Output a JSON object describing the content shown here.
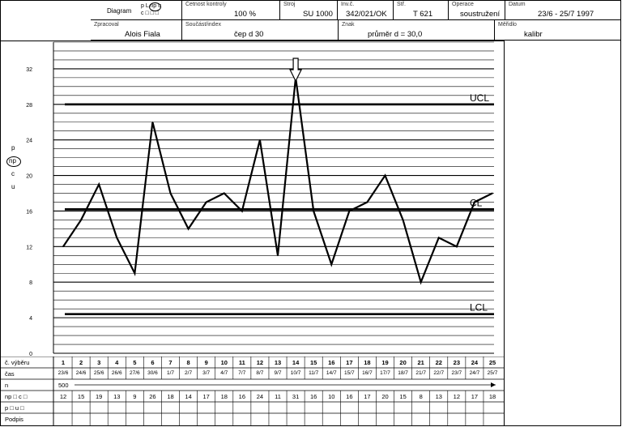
{
  "header": {
    "diagram_label": "Diagram",
    "diagram_options_top": "p L np u",
    "diagram_options_bottom": "c □ □ □",
    "freq_label": "Četnost kontroly",
    "freq_value": "100 %",
    "machine_label": "Stroj",
    "machine_value": "SU 1000",
    "inv_label": "Inv.č.",
    "inv_value": "342/021/OK",
    "str_label": "Stř.",
    "str_value": "T 621",
    "operation_label": "Operace",
    "operation_value": "soustružení",
    "date_label": "Datum",
    "date_value": "23/6 - 25/7 1997",
    "author_label": "Zpracoval",
    "author_value": "Alois Fiala",
    "part_label": "Součást/index",
    "part_value": "čep d 30",
    "sign_label": "Znak",
    "sign_value": "průměr d = 30,0",
    "method_label": "Měřidlo",
    "method_value": "kalibr"
  },
  "side_labels": {
    "p": "p",
    "np": "np",
    "c": "c",
    "u": "u"
  },
  "table": {
    "row_sample_label": "č. výběru",
    "row_time_label": "čas",
    "row_n_label": "n",
    "row_value_label": "np □ c □",
    "row_pu_label": "p □ u □",
    "row_sign_label": "Podpis",
    "n_value": "500",
    "sample_numbers": [
      "1",
      "2",
      "3",
      "4",
      "5",
      "6",
      "7",
      "8",
      "9",
      "10",
      "11",
      "12",
      "13",
      "14",
      "15",
      "16",
      "17",
      "18",
      "19",
      "20",
      "21",
      "22",
      "23",
      "24",
      "25"
    ],
    "times": [
      "23/6",
      "24/6",
      "25/6",
      "26/6",
      "27/6",
      "30/6",
      "1/7",
      "2/7",
      "3/7",
      "4/7",
      "7/7",
      "8/7",
      "9/7",
      "10/7",
      "11/7",
      "14/7",
      "15/7",
      "16/7",
      "17/7",
      "18/7",
      "21/7",
      "22/7",
      "23/7",
      "24/7",
      "25/7"
    ],
    "values": [
      "12",
      "15",
      "19",
      "13",
      "9",
      "26",
      "18",
      "14",
      "17",
      "18",
      "16",
      "24",
      "11",
      "31",
      "16",
      "10",
      "16",
      "17",
      "20",
      "15",
      "8",
      "13",
      "12",
      "17",
      "18"
    ]
  },
  "chart_data": {
    "type": "line",
    "x": [
      1,
      2,
      3,
      4,
      5,
      6,
      7,
      8,
      9,
      10,
      11,
      12,
      13,
      14,
      15,
      16,
      17,
      18,
      19,
      20,
      21,
      22,
      23,
      24,
      25
    ],
    "values": [
      12,
      15,
      19,
      13,
      9,
      26,
      18,
      14,
      17,
      18,
      16,
      24,
      11,
      31,
      16,
      10,
      16,
      17,
      20,
      15,
      8,
      13,
      12,
      17,
      18
    ],
    "ylim": [
      0,
      35
    ],
    "yticks": [
      0,
      4,
      8,
      12,
      16,
      20,
      24,
      28,
      32
    ],
    "ytick_labels": [
      "0",
      "4",
      "8",
      "12",
      "16",
      "20",
      "24",
      "28",
      "32"
    ],
    "UCL": 28,
    "CL": 16.2,
    "LCL": 4.4,
    "ucl_label": "UCL",
    "cl_label": "CL",
    "lcl_label": "LCL",
    "highlight_sample": 14,
    "grid": true
  }
}
